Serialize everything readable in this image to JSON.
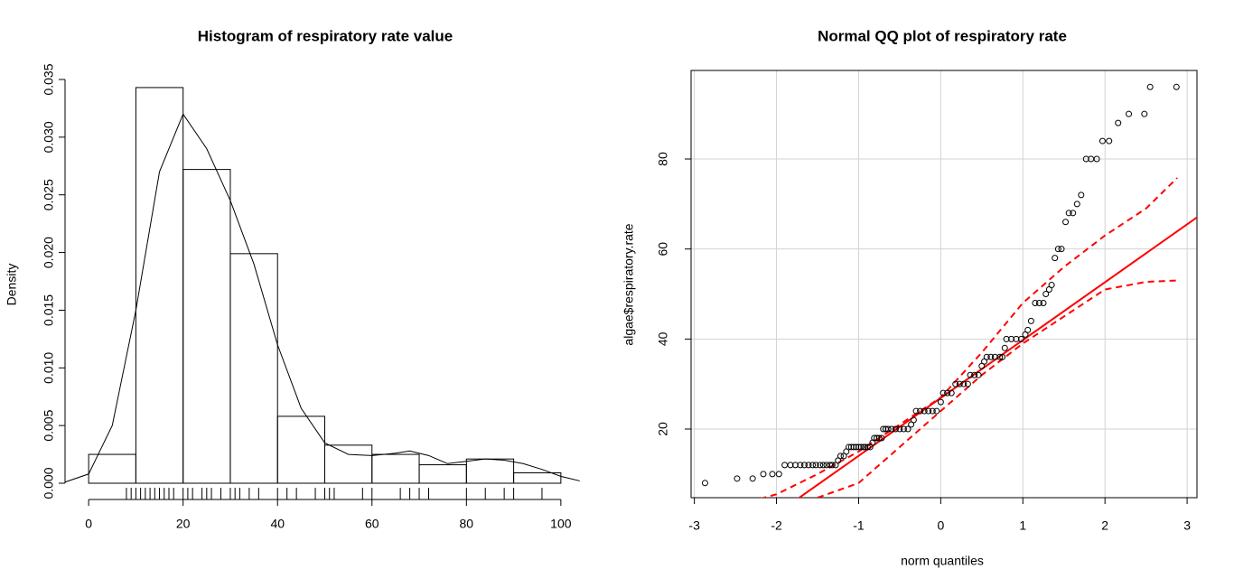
{
  "chart_data": [
    {
      "type": "histogram",
      "title": "Histogram of respiratory rate value",
      "y_label": "Density",
      "bins": [
        0,
        10,
        20,
        30,
        40,
        50,
        60,
        70,
        80,
        90,
        100
      ],
      "counts": [
        0.0025,
        0.0343,
        0.0272,
        0.0199,
        0.0058,
        0.0033,
        0.0025,
        0.0016,
        0.0021,
        0.0009
      ],
      "density": {
        "x": [
          -5,
          0,
          5,
          10,
          15,
          20,
          25,
          30,
          35,
          40,
          45,
          50,
          55,
          60,
          65,
          68,
          72,
          76,
          80,
          84,
          88,
          92,
          96,
          100,
          104
        ],
        "values": [
          0.0001,
          0.0008,
          0.005,
          0.015,
          0.027,
          0.032,
          0.029,
          0.0245,
          0.019,
          0.012,
          0.0065,
          0.0035,
          0.0025,
          0.0024,
          0.0026,
          0.0028,
          0.0024,
          0.0017,
          0.0019,
          0.0021,
          0.002,
          0.0017,
          0.0012,
          0.0006,
          0.0002
        ]
      },
      "rug": [
        8,
        9,
        10,
        11,
        12,
        13,
        14,
        15,
        16,
        17,
        18,
        20,
        21,
        22,
        24,
        25,
        26,
        28,
        30,
        31,
        32,
        34,
        36,
        40,
        42,
        44,
        48,
        50,
        51,
        52,
        58,
        60,
        66,
        68,
        70,
        72,
        80,
        84,
        88,
        90,
        96
      ],
      "color": "#000000",
      "xlim": [
        -5,
        105
      ],
      "xticks": [
        0,
        20,
        40,
        60,
        80,
        100
      ],
      "ylim": [
        0,
        0.035
      ],
      "yticks": [
        {
          "value": 0,
          "label": "0.000"
        },
        {
          "value": 0.005,
          "label": "0.005"
        },
        {
          "value": 0.01,
          "label": "0.010"
        },
        {
          "value": 0.015,
          "label": "0.015"
        },
        {
          "value": 0.02,
          "label": "0.020"
        },
        {
          "value": 0.025,
          "label": "0.025"
        },
        {
          "value": 0.03,
          "label": "0.030"
        },
        {
          "value": 0.035,
          "label": "0.035"
        }
      ]
    },
    {
      "type": "scatter",
      "title": "Normal QQ plot of respiratory rate",
      "x_label": "norm quantiles",
      "y_label": "algae$respiratory.rate",
      "x": [
        -2.87,
        -2.48,
        -2.29,
        -2.16,
        -2.05,
        -1.97,
        -1.9,
        -1.83,
        -1.77,
        -1.71,
        -1.66,
        -1.61,
        -1.56,
        -1.52,
        -1.47,
        -1.43,
        -1.39,
        -1.35,
        -1.32,
        -1.28,
        -1.25,
        -1.22,
        -1.18,
        -1.15,
        -1.12,
        -1.09,
        -1.06,
        -1.03,
        -1.0,
        -0.97,
        -0.94,
        -0.92,
        -0.89,
        -0.86,
        -0.83,
        -0.81,
        -0.78,
        -0.75,
        -0.72,
        -0.7,
        -0.67,
        -0.64,
        -0.6,
        -0.55,
        -0.5,
        -0.45,
        -0.4,
        -0.36,
        -0.33,
        -0.3,
        -0.25,
        -0.2,
        -0.15,
        -0.1,
        -0.05,
        0,
        0.03,
        0.08,
        0.13,
        0.18,
        0.23,
        0.28,
        0.33,
        0.36,
        0.41,
        0.46,
        0.5,
        0.53,
        0.56,
        0.61,
        0.66,
        0.72,
        0.75,
        0.78,
        0.8,
        0.86,
        0.92,
        0.98,
        1.03,
        1.06,
        1.1,
        1.15,
        1.2,
        1.25,
        1.28,
        1.32,
        1.35,
        1.39,
        1.43,
        1.47,
        1.52,
        1.56,
        1.61,
        1.66,
        1.71,
        1.77,
        1.83,
        1.9,
        1.97,
        2.05,
        2.16,
        2.29,
        2.48,
        2.55,
        2.87
      ],
      "values": [
        8,
        9,
        9,
        10,
        10,
        10,
        12,
        12,
        12,
        12,
        12,
        12,
        12,
        12,
        12,
        12,
        12,
        12,
        12,
        12,
        13,
        14,
        14,
        15,
        16,
        16,
        16,
        16,
        16,
        16,
        16,
        16,
        16,
        16,
        17,
        18,
        18,
        18,
        18,
        20,
        20,
        20,
        20,
        20,
        20,
        20,
        20,
        21,
        22,
        24,
        24,
        24,
        24,
        24,
        24,
        26,
        28,
        28,
        28,
        30,
        30,
        30,
        30,
        32,
        32,
        32,
        34,
        35,
        36,
        36,
        36,
        36,
        36,
        38,
        40,
        40,
        40,
        40,
        41,
        42,
        44,
        48,
        48,
        48,
        50,
        51,
        52,
        58,
        60,
        60,
        66,
        68,
        68,
        70,
        72,
        80,
        80,
        80,
        84,
        84,
        88,
        90,
        90,
        96,
        96
      ],
      "color": "#000000",
      "reference_line": {
        "intercept": 26.9,
        "slope": 12.86,
        "color": "#ff0000"
      },
      "envelope": {
        "x": [
          -2.2,
          -2,
          -1.5,
          -1,
          -0.5,
          0,
          0.5,
          1,
          1.5,
          2,
          2.5,
          2.88
        ],
        "upper": [
          4.5,
          5.5,
          10,
          15,
          21,
          27,
          37,
          48,
          56,
          63,
          69,
          75.8
        ],
        "lower": [
          null,
          null,
          4.75,
          8,
          16,
          24,
          32,
          39,
          45,
          51,
          52.7,
          53
        ],
        "color": "#ff0000"
      },
      "xlim": [
        -3.04,
        3.12
      ],
      "xticks": [
        -3,
        -2,
        -1,
        0,
        1,
        2,
        3
      ],
      "ylim": [
        4.75,
        99.67
      ],
      "yticks": [
        20,
        40,
        60,
        80
      ],
      "grid": true
    }
  ]
}
